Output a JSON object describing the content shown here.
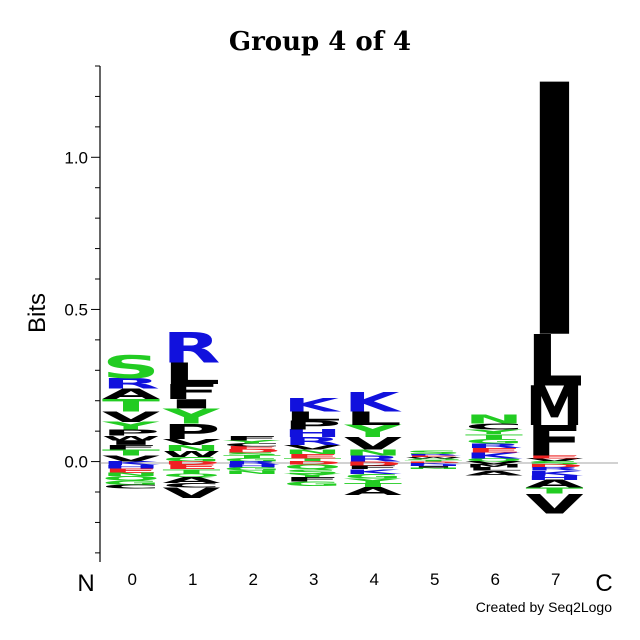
{
  "chart_data": {
    "type": "sequence-logo",
    "title": "Group 4 of 4",
    "ylabel": "Bits",
    "ylim": [
      -0.33,
      1.3
    ],
    "yticks": [
      {
        "value": 0.0,
        "label": "0.0"
      },
      {
        "value": 0.5,
        "label": "0.5"
      },
      {
        "value": 1.0,
        "label": "1.0"
      }
    ],
    "n_terminal_label": "N",
    "c_terminal_label": "C",
    "positions": [
      {
        "label": "0",
        "above": [
          [
            "V",
            0.02
          ],
          [
            "T",
            0.02
          ],
          [
            "F",
            0.015
          ],
          [
            "I",
            0.015
          ],
          [
            "W",
            0.015
          ],
          [
            "P",
            0.02
          ],
          [
            "Y",
            0.025
          ],
          [
            "V",
            0.035
          ],
          [
            "T",
            0.04
          ],
          [
            "A",
            0.035
          ],
          [
            "R",
            0.035
          ],
          [
            "S",
            0.075
          ]
        ],
        "below": [
          [
            "K",
            0.012
          ],
          [
            "H",
            0.01
          ],
          [
            "E",
            0.015
          ],
          [
            "N",
            0.01
          ],
          [
            "Q",
            0.015
          ],
          [
            "G",
            0.015
          ],
          [
            "C",
            0.012
          ]
        ]
      },
      {
        "label": "1",
        "above": [
          [
            "G",
            0.015
          ],
          [
            "W",
            0.02
          ],
          [
            "N",
            0.02
          ],
          [
            "V",
            0.02
          ],
          [
            "P",
            0.05
          ],
          [
            "Y",
            0.05
          ],
          [
            "I",
            0.03
          ],
          [
            "F",
            0.05
          ],
          [
            "L",
            0.07
          ],
          [
            "R",
            0.1
          ]
        ],
        "below": [
          [
            "D",
            0.01
          ],
          [
            "E",
            0.015
          ],
          [
            "T",
            0.015
          ],
          [
            "Q",
            0.01
          ],
          [
            "A",
            0.02
          ],
          [
            "C",
            0.015
          ],
          [
            "V",
            0.035
          ]
        ]
      },
      {
        "label": "2",
        "above": [
          [
            "G",
            0.01
          ],
          [
            "T",
            0.01
          ],
          [
            "S",
            0.01
          ],
          [
            "D",
            0.01
          ],
          [
            "E",
            0.01
          ],
          [
            "C",
            0.01
          ],
          [
            "Y",
            0.01
          ],
          [
            "F",
            0.015
          ]
        ],
        "below": [
          [
            "R",
            0.01
          ],
          [
            "H",
            0.01
          ],
          [
            "G",
            0.01
          ],
          [
            "N",
            0.01
          ]
        ]
      },
      {
        "label": "3",
        "above": [
          [
            "T",
            0.01
          ],
          [
            "E",
            0.015
          ],
          [
            "N",
            0.015
          ],
          [
            "V",
            0.015
          ],
          [
            "R",
            0.025
          ],
          [
            "H",
            0.025
          ],
          [
            "P",
            0.03
          ],
          [
            "L",
            0.03
          ],
          [
            "K",
            0.045
          ]
        ],
        "below": [
          [
            "D",
            0.01
          ],
          [
            "Q",
            0.015
          ],
          [
            "S",
            0.015
          ],
          [
            "Y",
            0.01
          ],
          [
            "F",
            0.015
          ],
          [
            "G",
            0.015
          ]
        ]
      },
      {
        "label": "4",
        "above": [
          [
            "R",
            0.02
          ],
          [
            "N",
            0.02
          ],
          [
            "V",
            0.04
          ],
          [
            "Y",
            0.04
          ],
          [
            "L",
            0.045
          ],
          [
            "K",
            0.065
          ]
        ],
        "below": [
          [
            "D",
            0.015
          ],
          [
            "F",
            0.01
          ],
          [
            "K",
            0.015
          ],
          [
            "G",
            0.015
          ],
          [
            "Y",
            0.015
          ],
          [
            "T",
            0.015
          ],
          [
            "A",
            0.025
          ]
        ]
      },
      {
        "label": "5",
        "above": [
          [
            "T",
            0.005
          ],
          [
            "Q",
            0.005
          ],
          [
            "W",
            0.005
          ],
          [
            "E",
            0.005
          ],
          [
            "R",
            0.005
          ],
          [
            "S",
            0.01
          ]
        ],
        "below": [
          [
            "D",
            0.005
          ],
          [
            "K",
            0.005
          ],
          [
            "H",
            0.005
          ],
          [
            "I",
            0.005
          ],
          [
            "N",
            0.005
          ]
        ]
      },
      {
        "label": "6",
        "above": [
          [
            "Q",
            0.01
          ],
          [
            "K",
            0.02
          ],
          [
            "E",
            0.015
          ],
          [
            "R",
            0.015
          ],
          [
            "G",
            0.015
          ],
          [
            "T",
            0.015
          ],
          [
            "Y",
            0.015
          ],
          [
            "C",
            0.02
          ],
          [
            "N",
            0.03
          ]
        ],
        "below": [
          [
            "V",
            0.01
          ],
          [
            "M",
            0.01
          ],
          [
            "L",
            0.01
          ],
          [
            "A",
            0.015
          ]
        ]
      },
      {
        "label": "7",
        "above": [
          [
            "V",
            0.01
          ],
          [
            "E",
            0.01
          ],
          [
            "F",
            0.1
          ],
          [
            "M",
            0.13
          ],
          [
            "L",
            0.17
          ],
          [
            "I",
            0.83
          ]
        ],
        "below": [
          [
            "S",
            0.01
          ],
          [
            "D",
            0.01
          ],
          [
            "R",
            0.01
          ],
          [
            "K",
            0.015
          ],
          [
            "H",
            0.015
          ],
          [
            "A",
            0.025
          ],
          [
            "T",
            0.02
          ],
          [
            "V",
            0.065
          ]
        ]
      }
    ]
  },
  "footer": {
    "credit": "Created by Seq2Logo"
  },
  "letter_colors": {
    "A": "#000000",
    "C": "#000000",
    "F": "#000000",
    "I": "#000000",
    "L": "#000000",
    "M": "#000000",
    "P": "#000000",
    "V": "#000000",
    "W": "#000000",
    "G": "#22cc22",
    "N": "#22cc22",
    "Q": "#22cc22",
    "S": "#22cc22",
    "T": "#22cc22",
    "Y": "#22cc22",
    "H": "#1111dd",
    "K": "#1111dd",
    "R": "#1111dd",
    "D": "#ee2222",
    "E": "#ee2222"
  }
}
